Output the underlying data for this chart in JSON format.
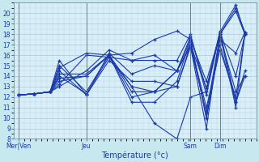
{
  "xlabel": "Température (°c)",
  "background_color": "#c8e8f0",
  "plot_bg_color": "#d8eef8",
  "line_color": "#1a3aaa",
  "grid_color": "#a0b8cc",
  "ylim": [
    8,
    21
  ],
  "yticks": [
    8,
    9,
    10,
    11,
    12,
    13,
    14,
    15,
    16,
    17,
    18,
    19,
    20
  ],
  "xtick_labels": [
    "Mer|Ven",
    "Jeu",
    "Sam",
    "Dim"
  ],
  "xtick_positions": [
    0.0,
    0.3,
    0.76,
    0.89
  ],
  "series": [
    {
      "x": [
        0.0,
        0.07,
        0.14,
        0.18,
        0.3,
        0.4,
        0.5,
        0.6,
        0.7,
        0.76,
        0.83,
        0.89,
        0.96,
        1.0
      ],
      "y": [
        12.2,
        12.3,
        12.5,
        13.8,
        14.0,
        16.0,
        16.2,
        17.5,
        18.3,
        17.5,
        13.5,
        18.0,
        20.2,
        18.0
      ]
    },
    {
      "x": [
        0.0,
        0.07,
        0.14,
        0.18,
        0.3,
        0.4,
        0.5,
        0.6,
        0.7,
        0.76,
        0.83,
        0.89,
        0.96,
        1.0
      ],
      "y": [
        12.2,
        12.3,
        12.5,
        13.5,
        14.0,
        16.0,
        13.0,
        9.5,
        8.0,
        12.0,
        12.5,
        18.2,
        14.0,
        18.0
      ]
    },
    {
      "x": [
        0.0,
        0.07,
        0.14,
        0.18,
        0.3,
        0.4,
        0.5,
        0.6,
        0.7,
        0.76,
        0.83,
        0.89,
        0.96,
        1.0
      ],
      "y": [
        12.2,
        12.3,
        12.5,
        14.8,
        16.2,
        16.0,
        12.0,
        12.5,
        14.5,
        17.0,
        12.8,
        18.3,
        11.5,
        14.5
      ]
    },
    {
      "x": [
        0.0,
        0.07,
        0.14,
        0.18,
        0.3,
        0.4,
        0.5,
        0.6,
        0.7,
        0.76,
        0.83,
        0.89,
        0.96,
        1.0
      ],
      "y": [
        12.2,
        12.3,
        12.5,
        14.0,
        12.3,
        15.8,
        13.0,
        12.5,
        13.0,
        16.8,
        9.0,
        18.0,
        20.5,
        18.2
      ]
    },
    {
      "x": [
        0.0,
        0.07,
        0.14,
        0.18,
        0.3,
        0.4,
        0.5,
        0.6,
        0.7,
        0.76,
        0.83,
        0.89,
        0.96,
        1.0
      ],
      "y": [
        12.2,
        12.3,
        12.5,
        15.5,
        12.2,
        15.5,
        13.5,
        13.5,
        13.0,
        17.0,
        11.0,
        16.5,
        12.0,
        18.0
      ]
    },
    {
      "x": [
        0.0,
        0.07,
        0.14,
        0.18,
        0.3,
        0.4,
        0.5,
        0.6,
        0.7,
        0.76,
        0.83,
        0.89,
        0.96,
        1.0
      ],
      "y": [
        12.2,
        12.3,
        12.5,
        14.2,
        14.2,
        16.0,
        12.5,
        12.5,
        14.5,
        17.5,
        10.0,
        17.0,
        11.5,
        14.0
      ]
    },
    {
      "x": [
        0.0,
        0.07,
        0.14,
        0.18,
        0.3,
        0.4,
        0.5,
        0.6,
        0.7,
        0.76,
        0.83,
        0.89,
        0.96,
        1.0
      ],
      "y": [
        12.2,
        12.3,
        12.5,
        13.0,
        14.5,
        16.5,
        15.5,
        15.5,
        15.5,
        18.0,
        12.2,
        18.2,
        20.8,
        18.0
      ]
    },
    {
      "x": [
        0.0,
        0.07,
        0.14,
        0.18,
        0.3,
        0.4,
        0.5,
        0.6,
        0.7,
        0.76,
        0.83,
        0.89,
        0.96,
        1.0
      ],
      "y": [
        12.2,
        12.3,
        12.5,
        15.0,
        12.5,
        16.0,
        11.5,
        11.5,
        13.5,
        17.5,
        10.0,
        17.5,
        16.2,
        18.2
      ]
    },
    {
      "x": [
        0.0,
        0.07,
        0.14,
        0.18,
        0.3,
        0.4,
        0.5,
        0.6,
        0.7,
        0.76,
        0.83,
        0.89,
        0.96,
        1.0
      ],
      "y": [
        12.2,
        12.3,
        12.5,
        14.5,
        12.2,
        16.2,
        14.2,
        15.0,
        14.5,
        16.8,
        10.5,
        17.8,
        12.5,
        14.0
      ]
    },
    {
      "x": [
        0.0,
        0.07,
        0.14,
        0.18,
        0.3,
        0.4,
        0.5,
        0.6,
        0.7,
        0.76,
        0.83,
        0.89,
        0.96,
        1.0
      ],
      "y": [
        12.2,
        12.3,
        12.5,
        13.2,
        16.0,
        15.8,
        15.5,
        16.0,
        14.5,
        17.8,
        12.8,
        18.0,
        11.0,
        18.0
      ]
    }
  ]
}
